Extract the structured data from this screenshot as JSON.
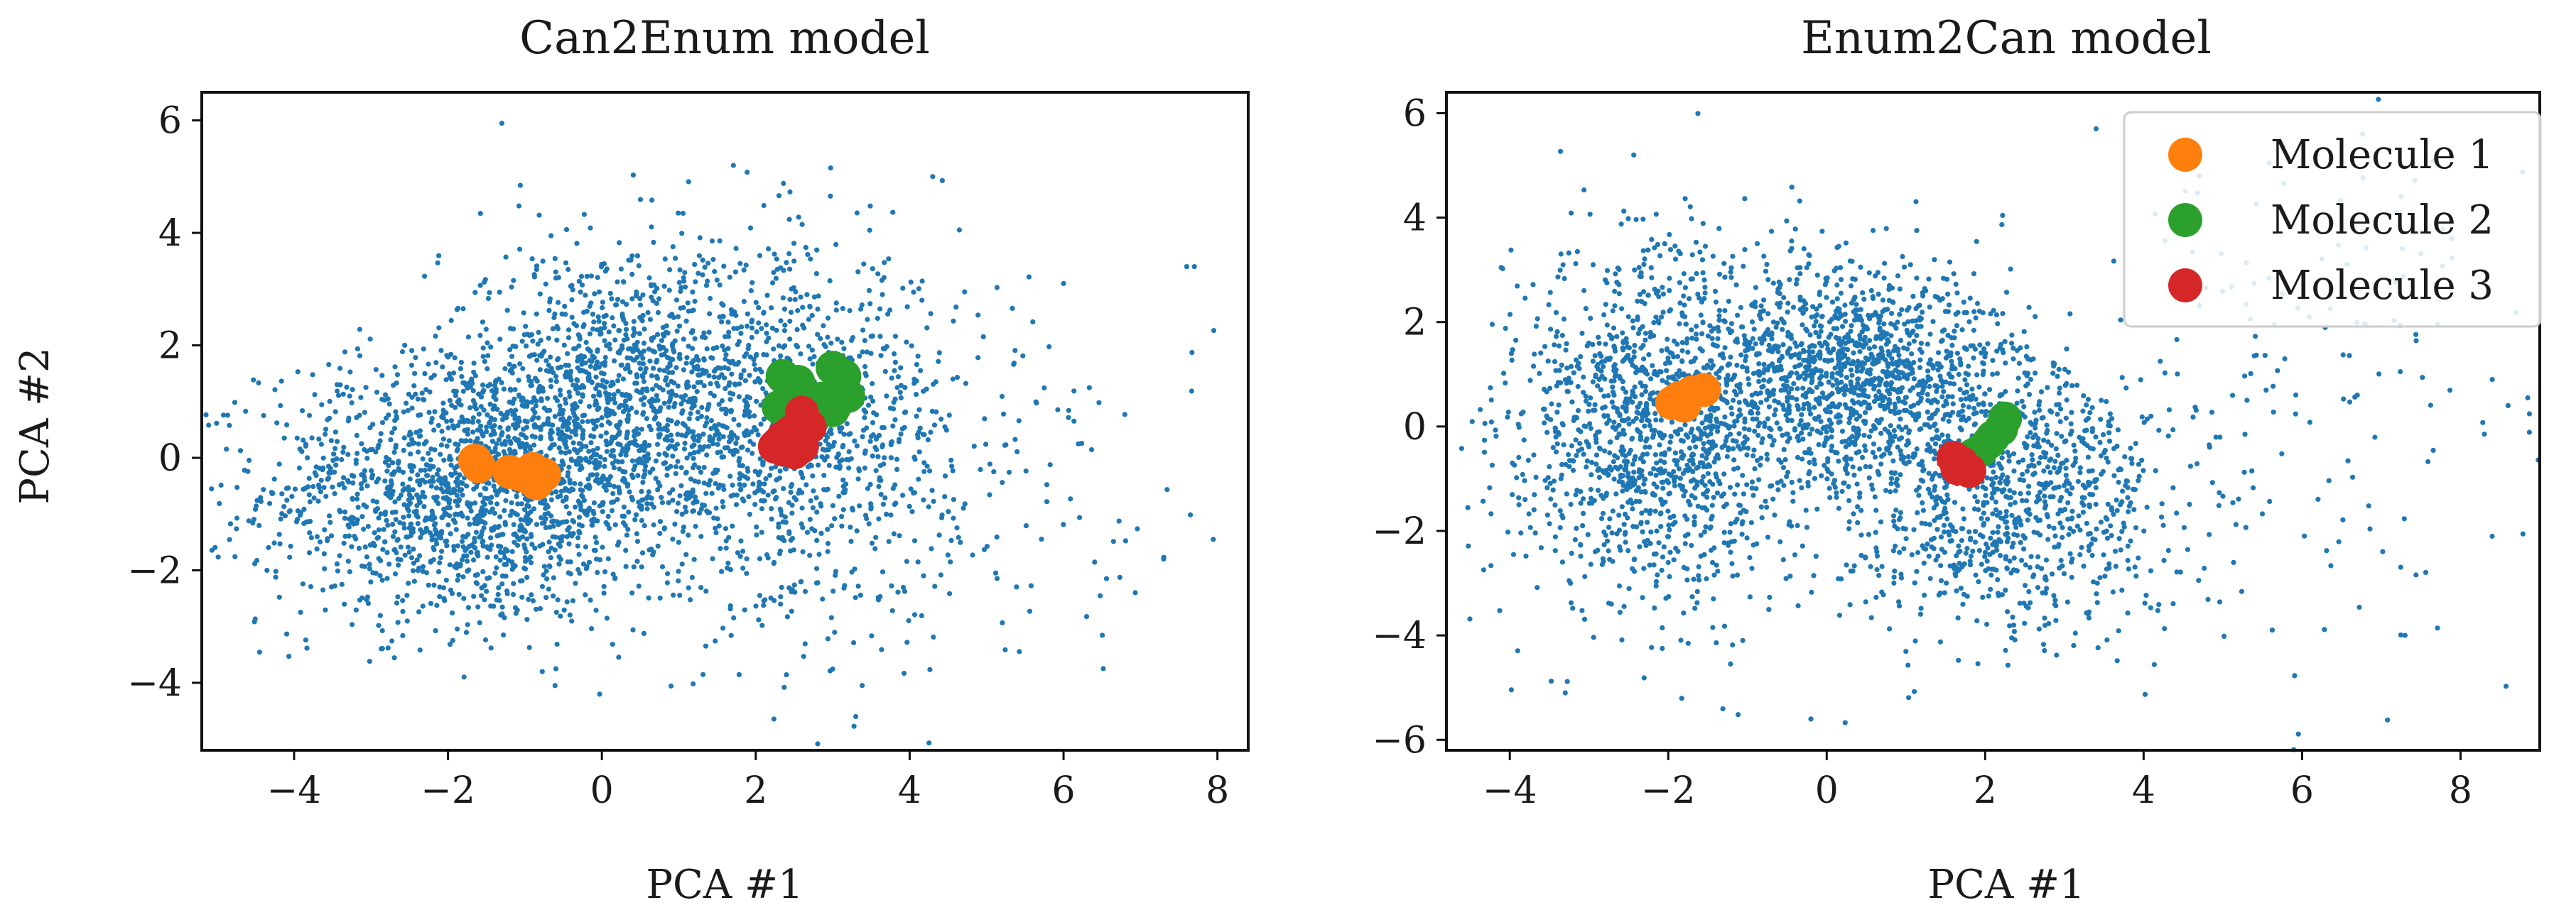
{
  "chart_data": [
    {
      "type": "scatter",
      "title": "Can2Enum model",
      "xlabel": "PCA #1",
      "ylabel": "PCA #2",
      "xlim": [
        -5.2,
        8.4
      ],
      "ylim": [
        -5.2,
        6.5
      ],
      "xticks": [
        -4,
        -2,
        0,
        2,
        4,
        6,
        8
      ],
      "yticks": [
        -4,
        -2,
        0,
        2,
        4,
        6
      ],
      "grid": false,
      "legend": null,
      "background": {
        "color": "#1f77b4",
        "clusters": [
          {
            "center": [
              -1.8,
              -0.6
            ],
            "spread": [
              1.3,
              1.2
            ],
            "count": 1500
          },
          {
            "center": [
              0.3,
              1.0
            ],
            "spread": [
              1.2,
              1.4
            ],
            "count": 1300
          },
          {
            "center": [
              2.6,
              0.4
            ],
            "spread": [
              1.0,
              1.6
            ],
            "count": 900
          },
          {
            "center": [
              5.5,
              -0.5
            ],
            "spread": [
              1.2,
              1.7
            ],
            "count": 110
          }
        ],
        "outliers": [
          [
            -1.3,
            5.95
          ],
          [
            4.3,
            5.0
          ],
          [
            7.6,
            3.4
          ],
          [
            7.7,
            3.4
          ],
          [
            3.3,
            -4.6
          ],
          [
            7.3,
            -1.8
          ],
          [
            6.0,
            3.1
          ]
        ]
      },
      "series": [
        {
          "name": "Molecule 1",
          "color": "#ff7f0e",
          "points": [
            [
              -1.65,
              -0.05
            ],
            [
              -1.6,
              -0.15
            ],
            [
              -1.2,
              -0.25
            ],
            [
              -1.05,
              -0.3
            ],
            [
              -0.95,
              -0.35
            ],
            [
              -0.85,
              -0.45
            ],
            [
              -0.75,
              -0.3
            ],
            [
              -0.9,
              -0.2
            ]
          ]
        },
        {
          "name": "Molecule 2",
          "color": "#2ca02c",
          "points": [
            [
              2.35,
              1.45
            ],
            [
              2.55,
              1.35
            ],
            [
              2.85,
              1.05
            ],
            [
              3.0,
              1.6
            ],
            [
              3.15,
              1.45
            ],
            [
              3.2,
              1.1
            ],
            [
              3.0,
              0.85
            ],
            [
              2.75,
              0.7
            ],
            [
              2.5,
              1.0
            ],
            [
              2.3,
              0.9
            ]
          ]
        },
        {
          "name": "Molecule 3",
          "color": "#d62728",
          "points": [
            [
              2.25,
              0.2
            ],
            [
              2.35,
              0.35
            ],
            [
              2.45,
              0.45
            ],
            [
              2.55,
              0.3
            ],
            [
              2.6,
              0.2
            ],
            [
              2.5,
              0.1
            ],
            [
              2.35,
              0.15
            ],
            [
              2.7,
              0.55
            ],
            [
              2.6,
              0.8
            ]
          ]
        }
      ]
    },
    {
      "type": "scatter",
      "title": "Enum2Can model",
      "xlabel": "PCA #1",
      "ylabel": "",
      "xlim": [
        -4.8,
        9.0
      ],
      "ylim": [
        -6.2,
        6.4
      ],
      "xticks": [
        -4,
        -2,
        0,
        2,
        4,
        6,
        8
      ],
      "yticks": [
        -6,
        -4,
        -2,
        0,
        2,
        4,
        6
      ],
      "grid": false,
      "legend": "top-right",
      "background": {
        "color": "#1f77b4",
        "clusters": [
          {
            "center": [
              -2.2,
              0.0
            ],
            "spread": [
              0.9,
              1.7
            ],
            "count": 1300
          },
          {
            "center": [
              0.3,
              1.0
            ],
            "spread": [
              0.9,
              1.1
            ],
            "count": 1200
          },
          {
            "center": [
              2.3,
              -1.2
            ],
            "spread": [
              1.1,
              1.4
            ],
            "count": 1000
          },
          {
            "center": [
              6.0,
              0.5
            ],
            "spread": [
              1.6,
              2.6
            ],
            "count": 160
          }
        ],
        "outliers": [
          [
            -0.2,
            -5.6
          ],
          [
            3.4,
            5.7
          ],
          [
            4.7,
            4.8
          ],
          [
            8.6,
            0.4
          ],
          [
            8.4,
            0.9
          ],
          [
            7.3,
            -4.0
          ],
          [
            -3.3,
            -5.1
          ]
        ]
      },
      "series": [
        {
          "name": "Molecule 1",
          "color": "#ff7f0e",
          "points": [
            [
              -1.95,
              0.45
            ],
            [
              -1.85,
              0.55
            ],
            [
              -1.7,
              0.65
            ],
            [
              -1.55,
              0.7
            ],
            [
              -1.8,
              0.4
            ],
            [
              -1.9,
              0.5
            ]
          ]
        },
        {
          "name": "Molecule 2",
          "color": "#2ca02c",
          "points": [
            [
              1.95,
              -0.45
            ],
            [
              2.05,
              -0.3
            ],
            [
              2.2,
              -0.05
            ],
            [
              2.25,
              0.15
            ],
            [
              2.1,
              -0.2
            ],
            [
              1.85,
              -0.55
            ]
          ]
        },
        {
          "name": "Molecule 3",
          "color": "#d62728",
          "points": [
            [
              1.6,
              -0.6
            ],
            [
              1.7,
              -0.7
            ],
            [
              1.8,
              -0.85
            ],
            [
              1.65,
              -0.8
            ]
          ]
        }
      ]
    }
  ]
}
